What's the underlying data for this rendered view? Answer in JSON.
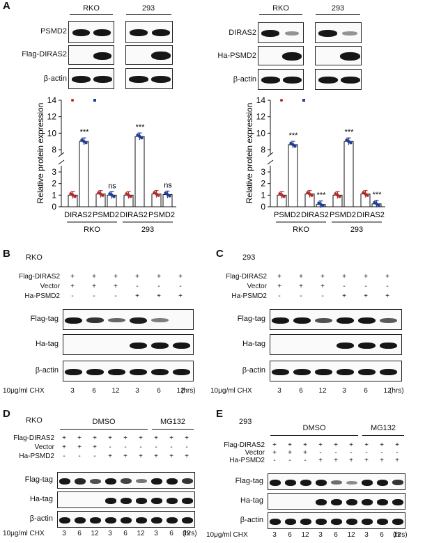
{
  "panel_a": {
    "label": "A",
    "left": {
      "cell_lines": [
        "RKO",
        "293"
      ],
      "rows": [
        "PSMD2",
        "Flag-DIRAS2",
        "β-actin"
      ]
    },
    "right": {
      "cell_lines": [
        "RKO",
        "293"
      ],
      "rows": [
        "DIRAS2",
        "Ha-PSMD2",
        "β-actin"
      ]
    }
  },
  "chart_data": [
    {
      "type": "bar",
      "ylabel": "Relative protein expression",
      "yticks_upper": [
        "8",
        "10",
        "12",
        "14"
      ],
      "yticks_lower": [
        "0",
        "1",
        "2",
        "3"
      ],
      "categories": [
        "DIRAS2",
        "PSMD2",
        "DIRAS2",
        "PSMD2"
      ],
      "groups": [
        "RKO",
        "293"
      ],
      "values_control": [
        1.0,
        1.1,
        1.0,
        1.1
      ],
      "values_treated": [
        9.0,
        1.0,
        9.6,
        1.05
      ],
      "significance": [
        "***",
        "ns",
        "***",
        "ns"
      ]
    },
    {
      "type": "bar",
      "ylabel": "Relative protein expression",
      "yticks_upper": [
        "8",
        "10",
        "12",
        "14"
      ],
      "yticks_lower": [
        "0",
        "1",
        "2",
        "3"
      ],
      "categories": [
        "PSMD2",
        "DIRAS2",
        "PSMD2",
        "DIRAS2"
      ],
      "groups": [
        "RKO",
        "293"
      ],
      "values_control": [
        1.0,
        1.1,
        1.0,
        1.1
      ],
      "values_treated": [
        8.6,
        0.2,
        9.0,
        0.25
      ],
      "significance": [
        "***",
        "***",
        "***",
        "***"
      ]
    }
  ],
  "panel_b": {
    "label": "B",
    "cell": "RKO",
    "cond_rows": [
      {
        "name": "Flag-DIRAS2",
        "vals": [
          "+",
          "+",
          "+",
          "+",
          "+",
          "+"
        ]
      },
      {
        "name": "Vector",
        "vals": [
          "+",
          "+",
          "+",
          "-",
          "-",
          "-"
        ]
      },
      {
        "name": "Ha-PSMD2",
        "vals": [
          "-",
          "-",
          "-",
          "+",
          "+",
          "+"
        ]
      }
    ],
    "blot_rows": [
      "Flag-tag",
      "Ha-tag",
      "β-actin"
    ],
    "chx_label": "10μg/ml CHX",
    "times": [
      "3",
      "6",
      "12",
      "3",
      "6",
      "12"
    ],
    "unit": "(hrs)"
  },
  "panel_c": {
    "label": "C",
    "cell": "293",
    "cond_rows": [
      {
        "name": "Flag-DIRAS2",
        "vals": [
          "+",
          "+",
          "+",
          "+",
          "+",
          "+"
        ]
      },
      {
        "name": "Vector",
        "vals": [
          "+",
          "+",
          "+",
          "-",
          "-",
          "-"
        ]
      },
      {
        "name": "Ha-PSMD2",
        "vals": [
          "-",
          "-",
          "-",
          "+",
          "+",
          "+"
        ]
      }
    ],
    "blot_rows": [
      "Flag-tag",
      "Ha-tag",
      "β-actin"
    ],
    "chx_label": "10μg/ml CHX",
    "times": [
      "3",
      "6",
      "12",
      "3",
      "6",
      "12"
    ],
    "unit": "(hrs)"
  },
  "panel_d": {
    "label": "D",
    "cell": "RKO",
    "dmso": "DMSO",
    "mg132": "MG132",
    "cond_rows": [
      {
        "name": "Flag-DIRAS2",
        "vals": [
          "+",
          "+",
          "+",
          "+",
          "+",
          "+",
          "+",
          "+",
          "+"
        ]
      },
      {
        "name": "Vector",
        "vals": [
          "+",
          "+",
          "+",
          "-",
          "-",
          "-",
          "-",
          "-",
          "-"
        ]
      },
      {
        "name": "Ha-PSMD2",
        "vals": [
          "-",
          "-",
          "-",
          "+",
          "+",
          "+",
          "+",
          "+",
          "+"
        ]
      }
    ],
    "blot_rows": [
      "Flag-tag",
      "Ha-tag",
      "β-actin"
    ],
    "chx_label": "10μg/ml CHX",
    "times": [
      "3",
      "6",
      "12",
      "3",
      "6",
      "12",
      "3",
      "6",
      "12"
    ],
    "unit": "(hrs)"
  },
  "panel_e": {
    "label": "E",
    "cell": "293",
    "dmso": "DMSO",
    "mg132": "MG132",
    "cond_rows": [
      {
        "name": "Flag-DIRAS2",
        "vals": [
          "+",
          "+",
          "+",
          "+",
          "+",
          "+",
          "+",
          "+",
          "+"
        ]
      },
      {
        "name": "Vector",
        "vals": [
          "+",
          "+",
          "+",
          "-",
          "-",
          "-",
          "-",
          "-",
          "-"
        ]
      },
      {
        "name": "Ha-PSMD2",
        "vals": [
          "-",
          "-",
          "-",
          "+",
          "+",
          "+",
          "+",
          "+",
          "+"
        ]
      }
    ],
    "blot_rows": [
      "Flag-tag",
      "Ha-tag",
      "β-actin"
    ],
    "chx_label": "10μg/ml CHX",
    "times": [
      "3",
      "6",
      "12",
      "3",
      "6",
      "12",
      "3",
      "6",
      "12"
    ],
    "unit": "(hrs)"
  },
  "colors": {
    "control_dot": "#b22a2a",
    "treated_dot": "#1f3c99",
    "band": "#161616"
  }
}
